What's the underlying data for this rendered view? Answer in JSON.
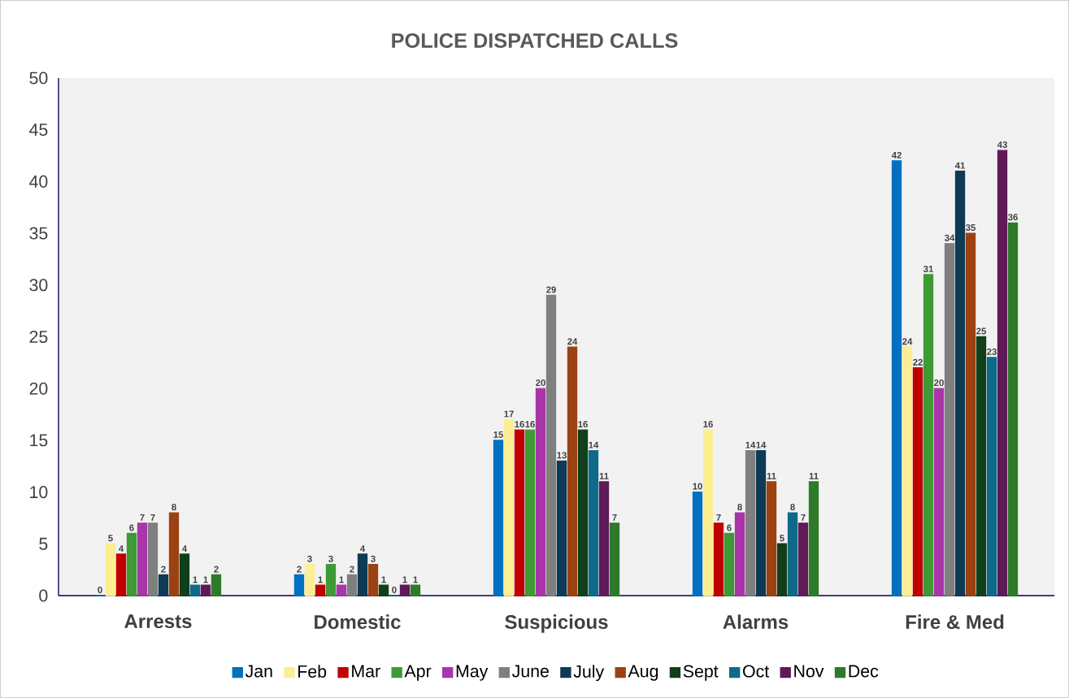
{
  "chart_data": {
    "type": "bar",
    "title": "POLICE DISPATCHED CALLS",
    "categories": [
      "Arrests",
      "Domestic",
      "Suspicious",
      "Alarms",
      "Fire & Med"
    ],
    "series": [
      {
        "name": "Jan",
        "color": "#0070c0",
        "values": [
          0,
          2,
          15,
          10,
          42
        ]
      },
      {
        "name": "Feb",
        "color": "#fbee93",
        "values": [
          5,
          3,
          17,
          16,
          24
        ]
      },
      {
        "name": "Mar",
        "color": "#c00000",
        "values": [
          4,
          1,
          16,
          7,
          22
        ]
      },
      {
        "name": "Apr",
        "color": "#3e9a35",
        "values": [
          6,
          3,
          16,
          6,
          31
        ]
      },
      {
        "name": "May",
        "color": "#a935a8",
        "values": [
          7,
          1,
          20,
          8,
          20
        ]
      },
      {
        "name": "June",
        "color": "#7f7f7f",
        "values": [
          7,
          2,
          29,
          14,
          34
        ]
      },
      {
        "name": "July",
        "color": "#0e3a55",
        "values": [
          2,
          4,
          13,
          14,
          41
        ]
      },
      {
        "name": "Aug",
        "color": "#9c4212",
        "values": [
          8,
          3,
          24,
          11,
          35
        ]
      },
      {
        "name": "Sept",
        "color": "#113f19",
        "values": [
          4,
          1,
          16,
          5,
          25
        ]
      },
      {
        "name": "Oct",
        "color": "#0f6a8a",
        "values": [
          1,
          0,
          14,
          8,
          23
        ]
      },
      {
        "name": "Nov",
        "color": "#5f1a57",
        "values": [
          1,
          1,
          11,
          7,
          43
        ]
      },
      {
        "name": "Dec",
        "color": "#2e7a2b",
        "values": [
          2,
          1,
          7,
          11,
          36
        ]
      }
    ],
    "ylim": [
      0,
      50
    ],
    "yticks": [
      0,
      5,
      10,
      15,
      20,
      25,
      30,
      35,
      40,
      45,
      50
    ],
    "data_labels": true,
    "legend": "bottom"
  }
}
